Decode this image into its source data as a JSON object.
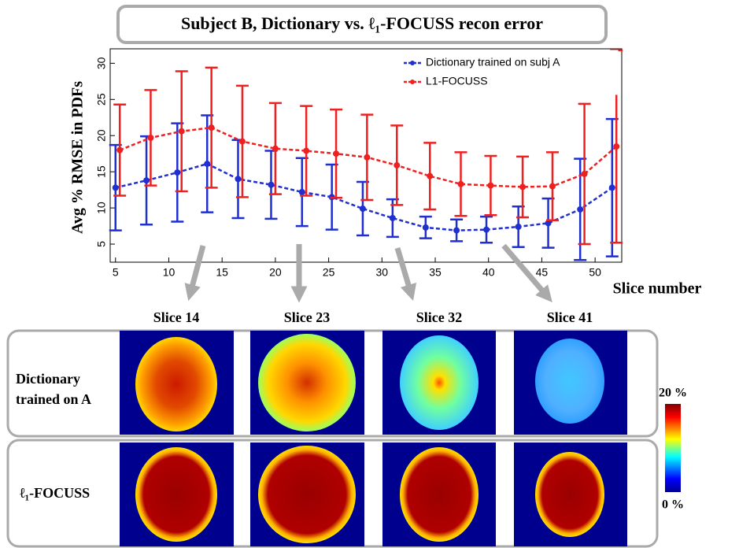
{
  "chart_data": {
    "type": "errorline",
    "title": "Subject B, Dictionary vs. ℓ₁-FOCUSS recon error",
    "x_label": "Slice number",
    "y_label": "Avg % RMSE in PDFs",
    "xlim": [
      4.5,
      52.5
    ],
    "xticks": [
      5,
      10,
      15,
      20,
      25,
      30,
      35,
      40,
      45,
      50
    ],
    "ylim": [
      2.5,
      32
    ],
    "yticks": [
      5,
      10,
      15,
      20,
      25,
      30
    ],
    "legend": "upper right",
    "series": [
      {
        "name": "Dictionary trained on subj A",
        "color": "#1f2fd0",
        "x": [
          5,
          7.9,
          10.8,
          13.6,
          16.5,
          19.6,
          22.5,
          25.3,
          28.2,
          31.0,
          34.1,
          37.0,
          39.8,
          42.8,
          45.6,
          48.6,
          51.6
        ],
        "values": [
          12.8,
          13.8,
          14.9,
          16.1,
          14.0,
          13.2,
          12.2,
          11.5,
          9.9,
          8.6,
          7.3,
          6.9,
          7.0,
          7.4,
          7.9,
          9.8,
          12.8
        ],
        "errors": [
          5.9,
          6.1,
          6.8,
          6.7,
          5.4,
          4.7,
          4.7,
          4.5,
          3.7,
          2.6,
          1.5,
          1.5,
          1.8,
          2.8,
          3.4,
          7.0,
          9.5
        ]
      },
      {
        "name": "L1-FOCUSS",
        "color": "#ee2020",
        "x": [
          5.4,
          8.3,
          11.2,
          14.0,
          16.9,
          20.0,
          22.9,
          25.7,
          28.6,
          31.4,
          34.5,
          37.4,
          40.2,
          43.2,
          46.0,
          49.0,
          52.0
        ],
        "values": [
          18.0,
          19.7,
          20.6,
          21.1,
          19.2,
          18.2,
          17.9,
          17.5,
          17.0,
          15.9,
          14.4,
          13.3,
          13.1,
          12.9,
          13.0,
          14.7,
          18.5
        ],
        "errors": [
          6.3,
          6.6,
          8.3,
          8.3,
          7.7,
          6.3,
          6.2,
          6.1,
          5.9,
          5.5,
          4.6,
          4.4,
          4.1,
          4.2,
          4.7,
          9.7,
          13.3
        ]
      }
    ]
  },
  "panels": {
    "columns": [
      "Slice 14",
      "Slice 23",
      "Slice 32",
      "Slice 41"
    ],
    "rows": [
      "Dictionary trained on A",
      "ℓ₁-FOCUSS"
    ],
    "colorbar": {
      "top": "20 %",
      "bottom": "0 %"
    }
  }
}
